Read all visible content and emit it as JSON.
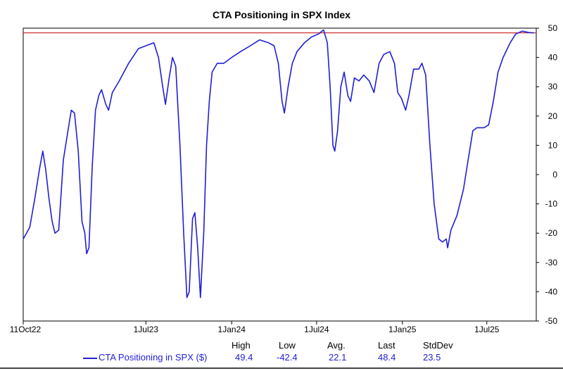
{
  "chart_data": {
    "type": "line",
    "title": "CTA Positioning in SPX Index",
    "ylim": [
      -50,
      50
    ],
    "yticks": [
      50,
      40,
      30,
      20,
      10,
      0,
      -10,
      -20,
      -30,
      -40,
      -50
    ],
    "x_ticks": [
      "11Oct22",
      "1Jul23",
      "1Jan24",
      "1Jul24",
      "1Jan25",
      "1Jul25"
    ],
    "reference_line": 48.4,
    "colors": {
      "series": "#1f1fd6",
      "reference": "#d03030"
    },
    "series": [
      {
        "name": "CTA Positioning in SPX ($)",
        "points": [
          [
            "2022-10-11",
            -22
          ],
          [
            "2022-10-25",
            -18
          ],
          [
            "2022-11-05",
            -8
          ],
          [
            "2022-11-15",
            2
          ],
          [
            "2022-11-22",
            8
          ],
          [
            "2022-11-28",
            2
          ],
          [
            "2022-12-05",
            -8
          ],
          [
            "2022-12-12",
            -16
          ],
          [
            "2022-12-18",
            -20
          ],
          [
            "2022-12-26",
            -19
          ],
          [
            "2023-01-05",
            5
          ],
          [
            "2023-01-15",
            15
          ],
          [
            "2023-01-22",
            22
          ],
          [
            "2023-01-29",
            21
          ],
          [
            "2023-02-06",
            8
          ],
          [
            "2023-02-14",
            -16
          ],
          [
            "2023-02-20",
            -20
          ],
          [
            "2023-02-24",
            -27
          ],
          [
            "2023-03-01",
            -25
          ],
          [
            "2023-03-08",
            3
          ],
          [
            "2023-03-15",
            22
          ],
          [
            "2023-03-22",
            27
          ],
          [
            "2023-03-28",
            29
          ],
          [
            "2023-04-06",
            24
          ],
          [
            "2023-04-12",
            22
          ],
          [
            "2023-04-20",
            28
          ],
          [
            "2023-05-05",
            32
          ],
          [
            "2023-05-25",
            38
          ],
          [
            "2023-06-15",
            43
          ],
          [
            "2023-07-01",
            44
          ],
          [
            "2023-07-18",
            45
          ],
          [
            "2023-07-28",
            40
          ],
          [
            "2023-08-06",
            30
          ],
          [
            "2023-08-12",
            24
          ],
          [
            "2023-08-20",
            33
          ],
          [
            "2023-08-27",
            40
          ],
          [
            "2023-09-03",
            37
          ],
          [
            "2023-09-12",
            10
          ],
          [
            "2023-09-20",
            -20
          ],
          [
            "2023-09-27",
            -42
          ],
          [
            "2023-10-02",
            -40
          ],
          [
            "2023-10-09",
            -15
          ],
          [
            "2023-10-14",
            -13
          ],
          [
            "2023-10-20",
            -25
          ],
          [
            "2023-10-26",
            -42
          ],
          [
            "2023-11-02",
            -20
          ],
          [
            "2023-11-08",
            10
          ],
          [
            "2023-11-14",
            25
          ],
          [
            "2023-11-20",
            35
          ],
          [
            "2023-12-01",
            38
          ],
          [
            "2023-12-15",
            38
          ],
          [
            "2024-01-01",
            40
          ],
          [
            "2024-01-20",
            42
          ],
          [
            "2024-02-10",
            44
          ],
          [
            "2024-03-01",
            46
          ],
          [
            "2024-03-20",
            45
          ],
          [
            "2024-04-01",
            44
          ],
          [
            "2024-04-10",
            38
          ],
          [
            "2024-04-18",
            25
          ],
          [
            "2024-04-23",
            21
          ],
          [
            "2024-05-01",
            30
          ],
          [
            "2024-05-10",
            38
          ],
          [
            "2024-05-20",
            42
          ],
          [
            "2024-06-05",
            45
          ],
          [
            "2024-06-20",
            47
          ],
          [
            "2024-07-05",
            48
          ],
          [
            "2024-07-16",
            49.4
          ],
          [
            "2024-07-24",
            45
          ],
          [
            "2024-07-30",
            30
          ],
          [
            "2024-08-05",
            10
          ],
          [
            "2024-08-09",
            8
          ],
          [
            "2024-08-15",
            15
          ],
          [
            "2024-08-22",
            30
          ],
          [
            "2024-08-29",
            35
          ],
          [
            "2024-09-06",
            27
          ],
          [
            "2024-09-12",
            25
          ],
          [
            "2024-09-20",
            33
          ],
          [
            "2024-09-30",
            32
          ],
          [
            "2024-10-10",
            34
          ],
          [
            "2024-10-22",
            32
          ],
          [
            "2024-11-01",
            28
          ],
          [
            "2024-11-12",
            38
          ],
          [
            "2024-11-22",
            41
          ],
          [
            "2024-12-05",
            42
          ],
          [
            "2024-12-15",
            38
          ],
          [
            "2024-12-22",
            28
          ],
          [
            "2024-12-30",
            26
          ],
          [
            "2025-01-08",
            22
          ],
          [
            "2025-01-15",
            27
          ],
          [
            "2025-01-25",
            36
          ],
          [
            "2025-02-05",
            36
          ],
          [
            "2025-02-12",
            38
          ],
          [
            "2025-02-20",
            34
          ],
          [
            "2025-03-01",
            10
          ],
          [
            "2025-03-10",
            -10
          ],
          [
            "2025-03-20",
            -22
          ],
          [
            "2025-03-28",
            -23
          ],
          [
            "2025-04-05",
            -22
          ],
          [
            "2025-04-08",
            -25
          ],
          [
            "2025-04-15",
            -19
          ],
          [
            "2025-04-28",
            -14
          ],
          [
            "2025-05-12",
            -5
          ],
          [
            "2025-05-22",
            5
          ],
          [
            "2025-06-01",
            15
          ],
          [
            "2025-06-10",
            16
          ],
          [
            "2025-06-25",
            16
          ],
          [
            "2025-07-05",
            17
          ],
          [
            "2025-07-15",
            25
          ],
          [
            "2025-07-25",
            35
          ],
          [
            "2025-08-05",
            40
          ],
          [
            "2025-08-20",
            45
          ],
          [
            "2025-09-01",
            48
          ],
          [
            "2025-09-15",
            49
          ],
          [
            "2025-09-29",
            48.5
          ],
          [
            "2025-10-10",
            48.4
          ]
        ]
      }
    ],
    "stats": {
      "headers": [
        "High",
        "Low",
        "Avg.",
        "Last",
        "StdDev"
      ],
      "values": [
        "49.4",
        "-42.4",
        "22.1",
        "48.4",
        "23.5"
      ]
    }
  },
  "legend": {
    "series_label": "CTA Positioning in SPX ($)"
  }
}
